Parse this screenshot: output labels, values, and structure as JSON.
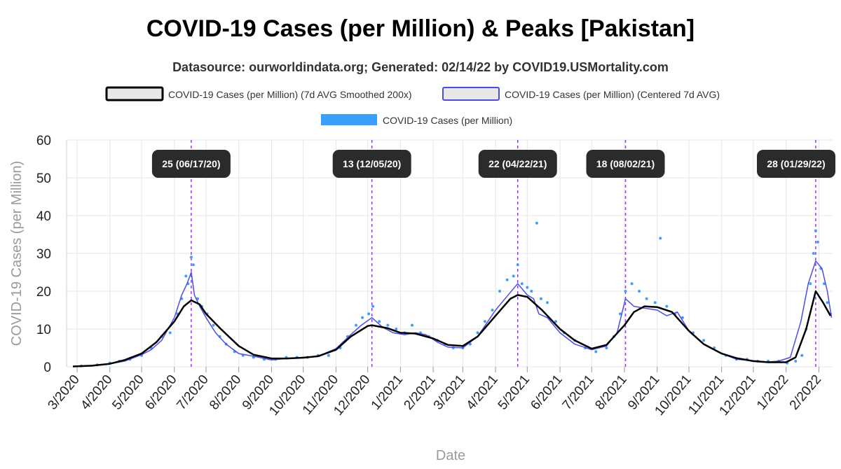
{
  "header": {
    "title": "COVID-19 Cases (per Million) & Peaks [Pakistan]",
    "subtitle": "Datasource: ourworldindata.org; Generated: 02/14/22 by COVID19.USMortality.com"
  },
  "colors": {
    "smoothed": "#000000",
    "centered": "#4b4bf0",
    "daily": "#3aa0ff",
    "peak_line": "#9b30ff",
    "annotation_bg": "#2b2b2b",
    "grid": "#e6e6e6"
  },
  "chart_data": {
    "type": "line",
    "title": "COVID-19 Cases (per Million) & Peaks [Pakistan]",
    "xlabel": "Date",
    "ylabel": "COVID-19 Cases (per Million)",
    "ylim": [
      0,
      60
    ],
    "yticks": [
      0,
      10,
      20,
      30,
      40,
      50,
      60
    ],
    "xlim": [
      "2020-02-20",
      "2022-02-14"
    ],
    "grid": true,
    "legend_position": "top",
    "legend": [
      {
        "name": "COVID-19 Cases (per Million) (7d AVG Smoothed 200x)",
        "style": "smoothed"
      },
      {
        "name": "COVID-19 Cases (per Million) (Centered 7d AVG)",
        "style": "centered"
      },
      {
        "name": "COVID-19 Cases (per Million)",
        "style": "daily"
      }
    ],
    "x_tick_labels": [
      {
        "label": "3/2020",
        "date": "2020-03-01"
      },
      {
        "label": "4/2020",
        "date": "2020-04-01"
      },
      {
        "label": "5/2020",
        "date": "2020-05-01"
      },
      {
        "label": "6/2020",
        "date": "2020-06-01"
      },
      {
        "label": "7/2020",
        "date": "2020-07-01"
      },
      {
        "label": "8/2020",
        "date": "2020-08-01"
      },
      {
        "label": "9/2020",
        "date": "2020-09-01"
      },
      {
        "label": "10/2020",
        "date": "2020-10-01"
      },
      {
        "label": "11/2020",
        "date": "2020-11-01"
      },
      {
        "label": "12/2020",
        "date": "2020-12-01"
      },
      {
        "label": "1/2021",
        "date": "2021-01-01"
      },
      {
        "label": "2/2021",
        "date": "2021-02-01"
      },
      {
        "label": "3/2021",
        "date": "2021-03-01"
      },
      {
        "label": "4/2021",
        "date": "2021-04-01"
      },
      {
        "label": "5/2021",
        "date": "2021-05-01"
      },
      {
        "label": "6/2021",
        "date": "2021-06-01"
      },
      {
        "label": "7/2021",
        "date": "2021-07-01"
      },
      {
        "label": "8/2021",
        "date": "2021-08-01"
      },
      {
        "label": "9/2021",
        "date": "2021-09-01"
      },
      {
        "label": "10/2021",
        "date": "2021-10-01"
      },
      {
        "label": "11/2021",
        "date": "2021-11-01"
      },
      {
        "label": "12/2021",
        "date": "2021-12-01"
      },
      {
        "label": "1/2022",
        "date": "2022-01-01"
      },
      {
        "label": "2/2022",
        "date": "2022-02-01"
      }
    ],
    "peaks": [
      {
        "date": "2020-06-17",
        "label": "25 (06/17/20)"
      },
      {
        "date": "2020-12-05",
        "label": "13 (12/05/20)"
      },
      {
        "date": "2021-04-22",
        "label": "22 (04/22/21)"
      },
      {
        "date": "2021-08-02",
        "label": "18 (08/02/21)"
      },
      {
        "date": "2022-01-29",
        "label": "28 (01/29/22)"
      }
    ],
    "series": [
      {
        "name": "COVID-19 Cases (per Million) (7d AVG Smoothed 200x)",
        "x": [
          "2020-02-26",
          "2020-03-15",
          "2020-04-01",
          "2020-04-15",
          "2020-05-01",
          "2020-05-15",
          "2020-06-01",
          "2020-06-10",
          "2020-06-17",
          "2020-06-25",
          "2020-07-01",
          "2020-07-15",
          "2020-08-01",
          "2020-08-15",
          "2020-09-01",
          "2020-09-15",
          "2020-10-01",
          "2020-10-15",
          "2020-11-01",
          "2020-11-15",
          "2020-12-01",
          "2020-12-05",
          "2020-12-20",
          "2021-01-01",
          "2021-01-15",
          "2021-02-01",
          "2021-02-15",
          "2021-03-01",
          "2021-03-15",
          "2021-04-01",
          "2021-04-15",
          "2021-04-22",
          "2021-05-01",
          "2021-05-15",
          "2021-06-01",
          "2021-06-15",
          "2021-07-01",
          "2021-07-15",
          "2021-08-01",
          "2021-08-10",
          "2021-08-20",
          "2021-09-01",
          "2021-09-15",
          "2021-10-01",
          "2021-10-15",
          "2021-11-01",
          "2021-11-15",
          "2021-12-01",
          "2021-12-15",
          "2022-01-01",
          "2022-01-10",
          "2022-01-20",
          "2022-01-29",
          "2022-02-05",
          "2022-02-12"
        ],
        "y": [
          0.1,
          0.3,
          0.8,
          1.8,
          3.5,
          6.5,
          12,
          16,
          17.6,
          16.5,
          14,
          10,
          5.5,
          3.2,
          2.2,
          2.2,
          2.4,
          2.8,
          4.5,
          8,
          10.8,
          11,
          10.2,
          9,
          8.8,
          7.5,
          5.8,
          5.5,
          8,
          13.5,
          18,
          19,
          18.5,
          15,
          10,
          7,
          4.8,
          5.8,
          11,
          14.5,
          16,
          15.8,
          14.5,
          9.5,
          6,
          3.5,
          2.3,
          1.5,
          1.2,
          1.2,
          2.5,
          10,
          20,
          17,
          13.5
        ]
      },
      {
        "name": "COVID-19 Cases (per Million) (Centered 7d AVG)",
        "x": [
          "2020-02-26",
          "2020-03-15",
          "2020-04-01",
          "2020-04-15",
          "2020-05-01",
          "2020-05-10",
          "2020-05-20",
          "2020-06-01",
          "2020-06-08",
          "2020-06-13",
          "2020-06-17",
          "2020-06-20",
          "2020-06-25",
          "2020-07-01",
          "2020-07-10",
          "2020-07-20",
          "2020-08-01",
          "2020-08-15",
          "2020-09-01",
          "2020-09-15",
          "2020-10-01",
          "2020-10-15",
          "2020-11-01",
          "2020-11-15",
          "2020-11-25",
          "2020-12-05",
          "2020-12-15",
          "2020-12-25",
          "2021-01-05",
          "2021-01-15",
          "2021-01-25",
          "2021-02-05",
          "2021-02-15",
          "2021-03-01",
          "2021-03-15",
          "2021-04-01",
          "2021-04-10",
          "2021-04-22",
          "2021-05-01",
          "2021-05-07",
          "2021-05-12",
          "2021-05-20",
          "2021-06-01",
          "2021-06-15",
          "2021-07-01",
          "2021-07-15",
          "2021-07-25",
          "2021-08-02",
          "2021-08-10",
          "2021-08-20",
          "2021-09-01",
          "2021-09-10",
          "2021-09-20",
          "2021-10-01",
          "2021-10-15",
          "2021-11-01",
          "2021-11-15",
          "2021-12-01",
          "2021-12-15",
          "2021-12-25",
          "2022-01-05",
          "2022-01-15",
          "2022-01-22",
          "2022-01-29",
          "2022-02-04",
          "2022-02-09",
          "2022-02-13"
        ],
        "y": [
          0.1,
          0.3,
          0.8,
          1.5,
          3.2,
          4.5,
          7,
          13,
          19,
          22,
          25,
          19,
          16,
          13,
          9,
          6,
          3.5,
          2.8,
          1.8,
          2.2,
          2.5,
          2.8,
          4.8,
          8.5,
          11,
          13,
          10.5,
          9,
          8.5,
          9,
          8.5,
          6.5,
          5.2,
          5,
          8,
          15,
          18,
          22,
          19,
          18,
          14,
          13,
          9,
          6,
          4.5,
          5.5,
          9,
          18,
          16,
          15.5,
          15,
          13.5,
          14.5,
          9.5,
          6,
          3.5,
          2,
          1.6,
          1.3,
          1.5,
          2.5,
          12,
          22,
          28,
          26,
          20,
          13
        ]
      },
      {
        "name": "COVID-19 Cases (per Million)",
        "x": [
          "2020-03-05",
          "2020-03-20",
          "2020-04-01",
          "2020-04-10",
          "2020-04-20",
          "2020-05-01",
          "2020-05-10",
          "2020-05-20",
          "2020-05-28",
          "2020-06-04",
          "2020-06-08",
          "2020-06-12",
          "2020-06-14",
          "2020-06-17",
          "2020-06-19",
          "2020-06-23",
          "2020-06-27",
          "2020-07-02",
          "2020-07-08",
          "2020-07-14",
          "2020-07-20",
          "2020-07-28",
          "2020-08-05",
          "2020-08-15",
          "2020-08-25",
          "2020-09-05",
          "2020-09-15",
          "2020-09-25",
          "2020-10-05",
          "2020-10-15",
          "2020-10-25",
          "2020-11-05",
          "2020-11-12",
          "2020-11-20",
          "2020-11-26",
          "2020-12-02",
          "2020-12-06",
          "2020-12-12",
          "2020-12-20",
          "2020-12-28",
          "2021-01-05",
          "2021-01-12",
          "2021-01-20",
          "2021-01-28",
          "2021-02-05",
          "2021-02-12",
          "2021-02-20",
          "2021-03-01",
          "2021-03-08",
          "2021-03-15",
          "2021-03-22",
          "2021-03-29",
          "2021-04-05",
          "2021-04-12",
          "2021-04-18",
          "2021-04-22",
          "2021-04-26",
          "2021-05-01",
          "2021-05-05",
          "2021-05-10",
          "2021-05-14",
          "2021-05-20",
          "2021-05-28",
          "2021-06-05",
          "2021-06-15",
          "2021-06-25",
          "2021-07-05",
          "2021-07-15",
          "2021-07-22",
          "2021-07-28",
          "2021-08-02",
          "2021-08-08",
          "2021-08-15",
          "2021-08-22",
          "2021-08-30",
          "2021-09-04",
          "2021-09-10",
          "2021-09-18",
          "2021-09-25",
          "2021-10-05",
          "2021-10-15",
          "2021-10-25",
          "2021-11-05",
          "2021-11-15",
          "2021-11-25",
          "2021-12-05",
          "2021-12-15",
          "2021-12-25",
          "2022-01-02",
          "2022-01-10",
          "2022-01-16",
          "2022-01-20",
          "2022-01-24",
          "2022-01-27",
          "2022-01-29",
          "2022-01-31",
          "2022-02-03",
          "2022-02-06",
          "2022-02-09",
          "2022-02-12"
        ],
        "y": [
          0.2,
          0.5,
          1,
          1.5,
          2,
          3,
          5,
          8,
          9,
          14,
          18,
          24,
          22,
          29,
          27,
          18,
          16,
          14,
          11,
          8,
          6,
          4,
          3,
          2.5,
          2,
          2,
          2.5,
          2.5,
          2.5,
          3,
          3,
          5,
          8,
          11,
          13,
          14,
          16,
          12,
          11,
          10,
          9,
          11,
          9,
          8,
          7,
          6,
          5,
          5,
          6,
          9,
          12,
          15,
          20,
          23,
          24,
          27,
          22,
          21,
          20,
          38,
          18,
          17,
          12,
          9,
          7,
          5,
          4,
          5,
          8,
          14,
          20,
          22,
          20,
          18,
          17,
          34,
          16,
          14,
          13,
          9,
          7,
          5,
          3,
          2,
          2,
          1.5,
          1.5,
          1.5,
          1,
          1.5,
          3,
          10,
          22,
          30,
          36,
          33,
          26,
          22,
          17,
          14
        ]
      }
    ]
  }
}
